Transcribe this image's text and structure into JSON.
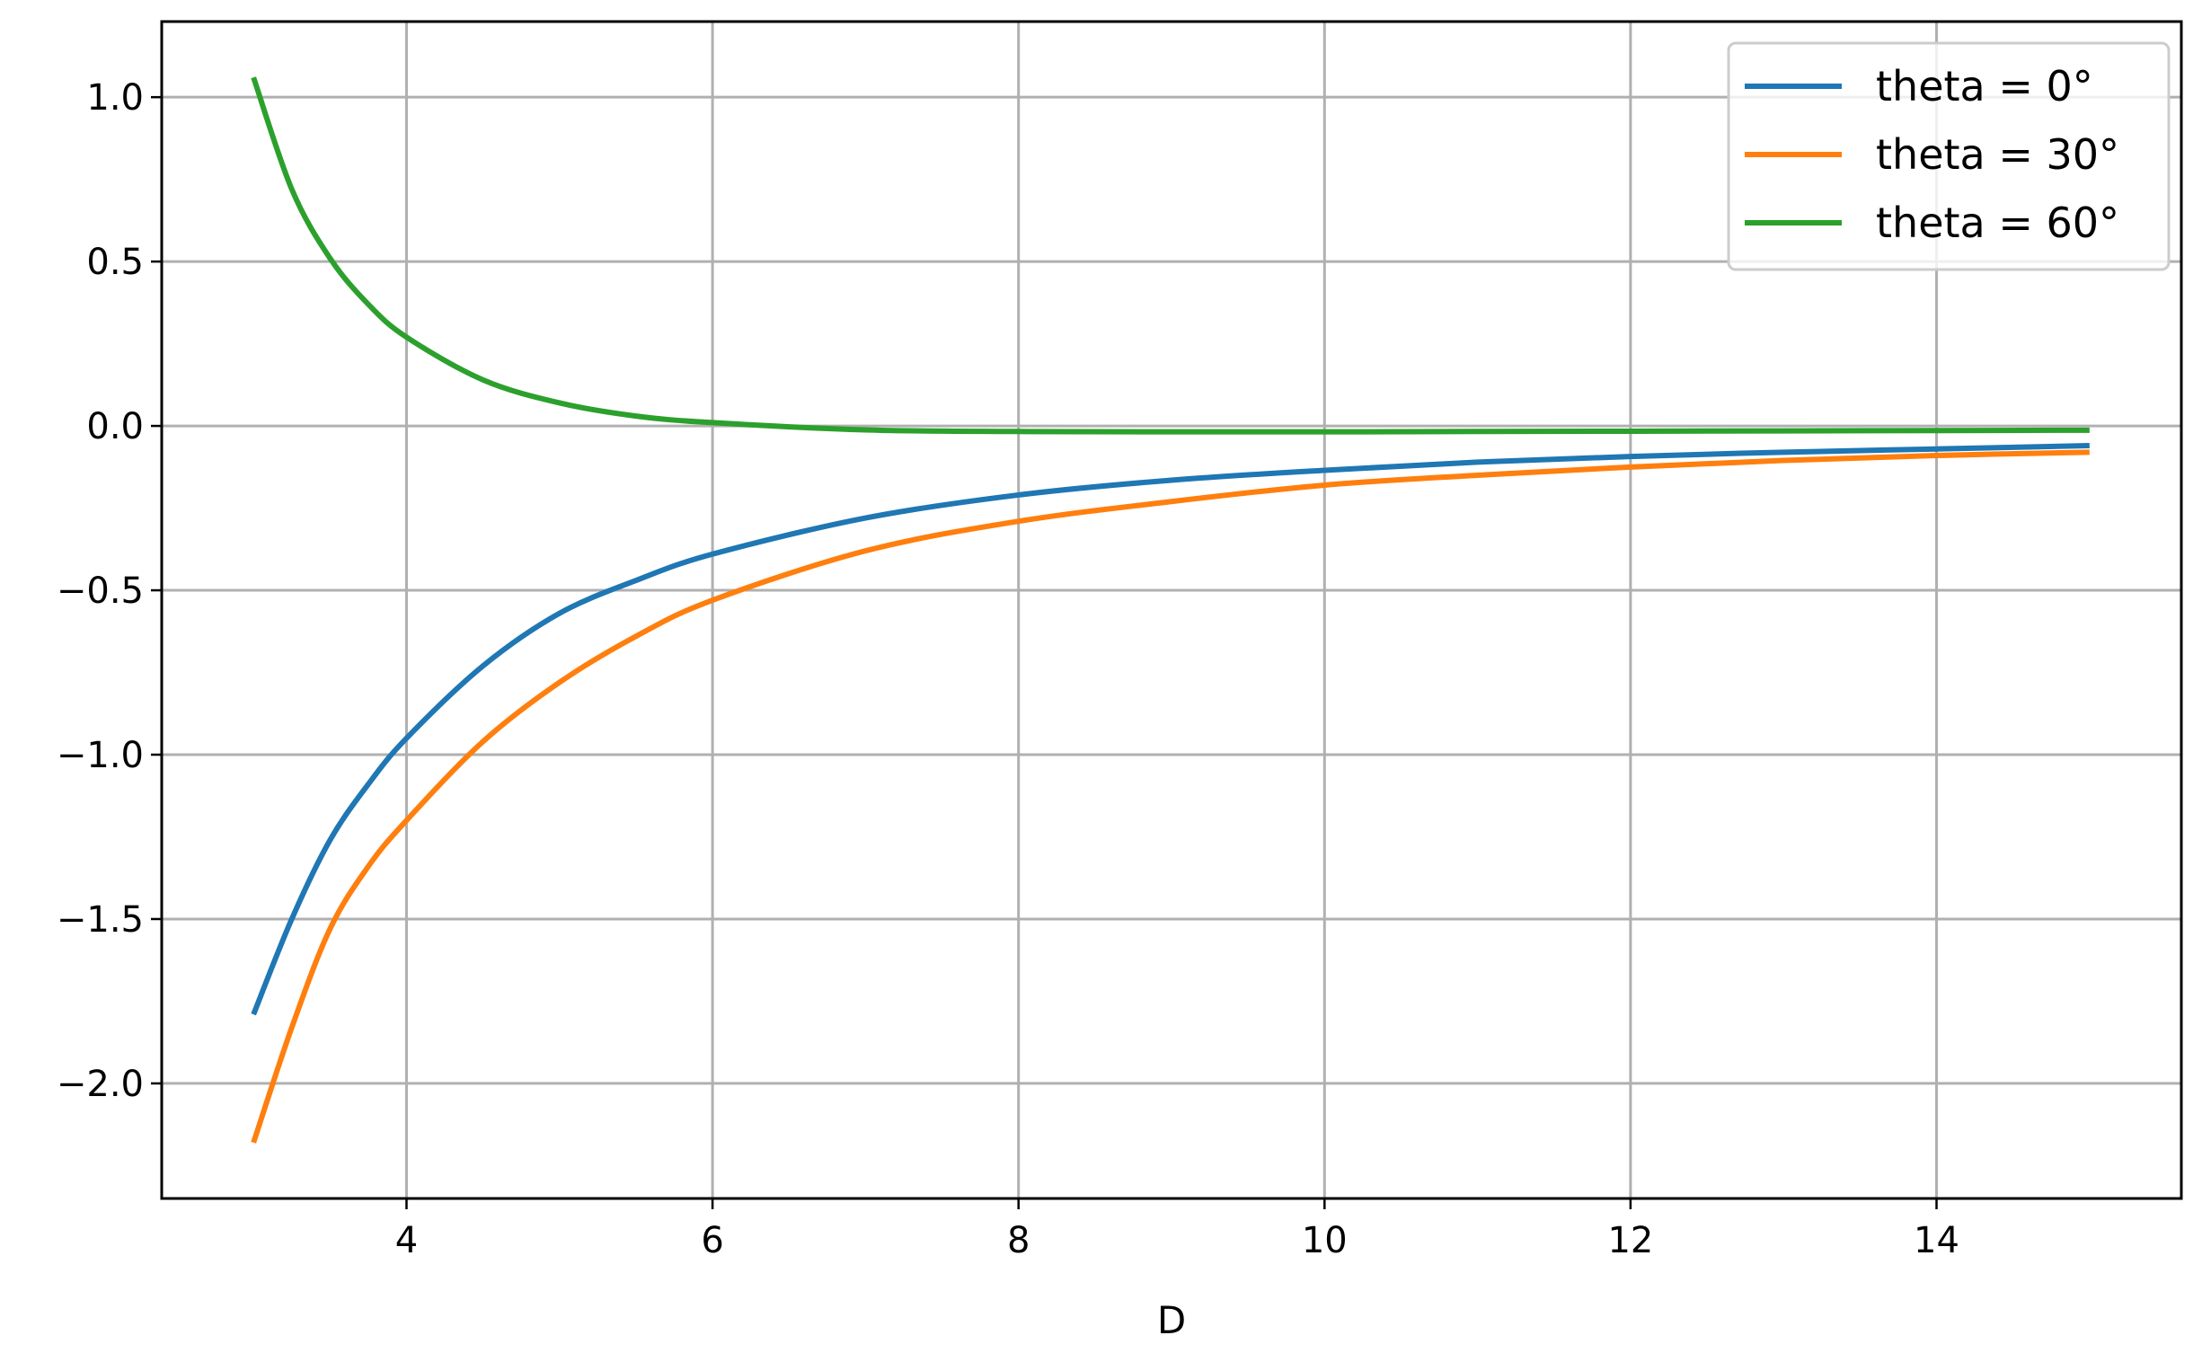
{
  "chart_data": {
    "type": "line",
    "title": "",
    "xlabel": "D",
    "ylabel": "",
    "xlim": [
      2.4,
      15.6
    ],
    "ylim": [
      -2.35,
      1.23
    ],
    "grid": true,
    "legend_position": "top-right",
    "x_ticks": [
      4,
      6,
      8,
      10,
      12,
      14
    ],
    "x_tick_labels": [
      "4",
      "6",
      "8",
      "10",
      "12",
      "14"
    ],
    "y_ticks": [
      1.0,
      0.5,
      0.0,
      -0.5,
      -1.0,
      -1.5,
      -2.0
    ],
    "y_tick_labels": [
      "1.0",
      "0.5",
      "0.0",
      "−0.5",
      "−1.0",
      "−1.5",
      "−2.0"
    ],
    "x": [
      3.0,
      3.25,
      3.5,
      3.75,
      4.0,
      4.5,
      5.0,
      5.5,
      6.0,
      7.0,
      8.0,
      9.0,
      10.0,
      11.0,
      12.0,
      13.0,
      14.0,
      15.0
    ],
    "series": [
      {
        "name": "theta = 0°",
        "color": "#1f77b4",
        "values": [
          -1.79,
          -1.5,
          -1.26,
          -1.09,
          -0.95,
          -0.73,
          -0.57,
          -0.47,
          -0.39,
          -0.28,
          -0.21,
          -0.165,
          -0.135,
          -0.11,
          -0.093,
          -0.08,
          -0.07,
          -0.06
        ]
      },
      {
        "name": "theta = 30°",
        "color": "#ff7f0e",
        "values": [
          -2.18,
          -1.83,
          -1.53,
          -1.34,
          -1.2,
          -0.96,
          -0.78,
          -0.64,
          -0.53,
          -0.38,
          -0.29,
          -0.23,
          -0.18,
          -0.15,
          -0.125,
          -0.105,
          -0.09,
          -0.08
        ]
      },
      {
        "name": "theta = 60°",
        "color": "#2ca02c",
        "values": [
          1.06,
          0.72,
          0.51,
          0.37,
          0.27,
          0.14,
          0.07,
          0.03,
          0.01,
          -0.012,
          -0.017,
          -0.018,
          -0.018,
          -0.017,
          -0.016,
          -0.015,
          -0.014,
          -0.013
        ]
      }
    ]
  }
}
